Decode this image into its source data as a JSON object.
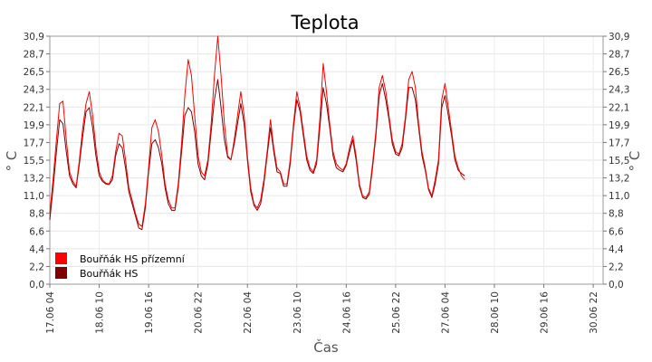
{
  "chart_data": {
    "type": "line",
    "title": "Teplota",
    "xlabel": "Čas",
    "ylabel": "° C",
    "ylim": [
      0,
      30.9
    ],
    "y_ticks": [
      "0,0",
      "2,2",
      "4,4",
      "6,6",
      "8,8",
      "11,0",
      "13,2",
      "15,5",
      "17,7",
      "19,9",
      "22,1",
      "24,3",
      "26,5",
      "28,7",
      "30,9"
    ],
    "x_ticks": [
      "17.06 04",
      "18.06 10",
      "19.06 16",
      "20.06 22",
      "22.06 04",
      "23.06 10",
      "24.06 16",
      "25.06 22",
      "27.06 04",
      "28.06 10",
      "29.06 16",
      "30.06 22"
    ],
    "x_tick_hours": [
      4,
      34,
      64,
      94,
      124,
      154,
      184,
      214,
      244,
      274,
      304,
      334
    ],
    "x_range_hours": [
      4,
      340
    ],
    "grid": true,
    "legend_position": "bottom-left",
    "series": [
      {
        "name": "Bouřňák HS přízemní",
        "color": "#ff0000",
        "points": [
          [
            4,
            8.8
          ],
          [
            6,
            13.0
          ],
          [
            8,
            18.0
          ],
          [
            10,
            22.5
          ],
          [
            12,
            22.8
          ],
          [
            14,
            18.0
          ],
          [
            16,
            14.0
          ],
          [
            18,
            12.8
          ],
          [
            20,
            12.2
          ],
          [
            22,
            15.5
          ],
          [
            24,
            19.5
          ],
          [
            26,
            22.5
          ],
          [
            28,
            24.0
          ],
          [
            30,
            21.0
          ],
          [
            32,
            17.0
          ],
          [
            34,
            14.0
          ],
          [
            36,
            13.0
          ],
          [
            38,
            12.6
          ],
          [
            40,
            12.5
          ],
          [
            42,
            13.5
          ],
          [
            44,
            16.5
          ],
          [
            46,
            18.8
          ],
          [
            48,
            18.5
          ],
          [
            50,
            15.5
          ],
          [
            52,
            12.0
          ],
          [
            54,
            10.5
          ],
          [
            56,
            8.8
          ],
          [
            58,
            7.5
          ],
          [
            60,
            7.2
          ],
          [
            62,
            10.0
          ],
          [
            64,
            14.5
          ],
          [
            66,
            19.5
          ],
          [
            68,
            20.5
          ],
          [
            70,
            19.0
          ],
          [
            72,
            16.0
          ],
          [
            74,
            12.5
          ],
          [
            76,
            10.5
          ],
          [
            78,
            9.5
          ],
          [
            80,
            9.5
          ],
          [
            82,
            12.5
          ],
          [
            84,
            17.5
          ],
          [
            86,
            23.5
          ],
          [
            88,
            28.0
          ],
          [
            90,
            26.0
          ],
          [
            92,
            21.0
          ],
          [
            94,
            16.0
          ],
          [
            96,
            14.0
          ],
          [
            98,
            13.5
          ],
          [
            100,
            15.5
          ],
          [
            102,
            20.0
          ],
          [
            104,
            26.0
          ],
          [
            106,
            30.9
          ],
          [
            108,
            26.0
          ],
          [
            110,
            20.0
          ],
          [
            112,
            16.0
          ],
          [
            114,
            15.5
          ],
          [
            116,
            18.0
          ],
          [
            118,
            21.0
          ],
          [
            120,
            24.0
          ],
          [
            122,
            21.0
          ],
          [
            124,
            16.0
          ],
          [
            126,
            12.0
          ],
          [
            128,
            10.0
          ],
          [
            130,
            9.5
          ],
          [
            132,
            10.5
          ],
          [
            134,
            13.0
          ],
          [
            136,
            16.5
          ],
          [
            138,
            20.5
          ],
          [
            140,
            17.0
          ],
          [
            142,
            14.5
          ],
          [
            144,
            14.0
          ],
          [
            146,
            12.5
          ],
          [
            148,
            12.5
          ],
          [
            150,
            15.5
          ],
          [
            152,
            20.0
          ],
          [
            154,
            24.0
          ],
          [
            156,
            22.0
          ],
          [
            158,
            19.0
          ],
          [
            160,
            16.0
          ],
          [
            162,
            14.5
          ],
          [
            164,
            14.0
          ],
          [
            166,
            15.5
          ],
          [
            168,
            20.5
          ],
          [
            170,
            27.5
          ],
          [
            172,
            24.0
          ],
          [
            174,
            20.0
          ],
          [
            176,
            16.5
          ],
          [
            178,
            15.0
          ],
          [
            180,
            14.5
          ],
          [
            182,
            14.2
          ],
          [
            184,
            15.0
          ],
          [
            186,
            17.0
          ],
          [
            188,
            18.5
          ],
          [
            190,
            16.0
          ],
          [
            192,
            12.5
          ],
          [
            194,
            11.0
          ],
          [
            196,
            10.8
          ],
          [
            198,
            11.5
          ],
          [
            200,
            15.0
          ],
          [
            202,
            19.0
          ],
          [
            204,
            24.5
          ],
          [
            206,
            26.0
          ],
          [
            208,
            24.0
          ],
          [
            210,
            21.0
          ],
          [
            212,
            18.0
          ],
          [
            214,
            16.5
          ],
          [
            216,
            16.2
          ],
          [
            218,
            17.5
          ],
          [
            220,
            21.0
          ],
          [
            222,
            25.5
          ],
          [
            224,
            26.5
          ],
          [
            226,
            24.5
          ],
          [
            228,
            20.0
          ],
          [
            230,
            16.5
          ],
          [
            232,
            14.5
          ],
          [
            234,
            12.0
          ],
          [
            236,
            11.0
          ],
          [
            238,
            13.0
          ],
          [
            240,
            15.5
          ],
          [
            242,
            23.0
          ],
          [
            244,
            25.0
          ],
          [
            246,
            22.0
          ],
          [
            248,
            19.0
          ],
          [
            250,
            16.0
          ],
          [
            252,
            14.5
          ],
          [
            254,
            13.5
          ],
          [
            256,
            13.0
          ]
        ]
      },
      {
        "name": "Bouřňák HS",
        "color": "#800000",
        "points": [
          [
            4,
            8.0
          ],
          [
            6,
            12.0
          ],
          [
            8,
            16.5
          ],
          [
            10,
            20.5
          ],
          [
            12,
            20.0
          ],
          [
            14,
            16.5
          ],
          [
            16,
            13.5
          ],
          [
            18,
            12.5
          ],
          [
            20,
            12.0
          ],
          [
            22,
            15.0
          ],
          [
            24,
            18.5
          ],
          [
            26,
            21.5
          ],
          [
            28,
            22.0
          ],
          [
            30,
            19.5
          ],
          [
            32,
            16.0
          ],
          [
            34,
            13.5
          ],
          [
            36,
            12.8
          ],
          [
            38,
            12.5
          ],
          [
            40,
            12.4
          ],
          [
            42,
            13.0
          ],
          [
            44,
            16.0
          ],
          [
            46,
            17.5
          ],
          [
            48,
            17.0
          ],
          [
            50,
            14.5
          ],
          [
            52,
            11.5
          ],
          [
            54,
            10.0
          ],
          [
            56,
            8.5
          ],
          [
            58,
            7.0
          ],
          [
            60,
            6.8
          ],
          [
            62,
            9.5
          ],
          [
            64,
            14.0
          ],
          [
            66,
            17.5
          ],
          [
            68,
            18.0
          ],
          [
            70,
            17.0
          ],
          [
            72,
            15.0
          ],
          [
            74,
            12.0
          ],
          [
            76,
            10.0
          ],
          [
            78,
            9.2
          ],
          [
            80,
            9.2
          ],
          [
            82,
            12.0
          ],
          [
            84,
            16.5
          ],
          [
            86,
            21.0
          ],
          [
            88,
            22.0
          ],
          [
            90,
            21.5
          ],
          [
            92,
            19.0
          ],
          [
            94,
            15.0
          ],
          [
            96,
            13.5
          ],
          [
            98,
            13.0
          ],
          [
            100,
            15.0
          ],
          [
            102,
            19.0
          ],
          [
            104,
            23.0
          ],
          [
            106,
            25.5
          ],
          [
            108,
            22.0
          ],
          [
            110,
            18.0
          ],
          [
            112,
            15.8
          ],
          [
            114,
            15.5
          ],
          [
            116,
            17.5
          ],
          [
            118,
            20.0
          ],
          [
            120,
            22.5
          ],
          [
            122,
            20.0
          ],
          [
            124,
            15.5
          ],
          [
            126,
            11.5
          ],
          [
            128,
            9.8
          ],
          [
            130,
            9.2
          ],
          [
            132,
            10.0
          ],
          [
            134,
            12.5
          ],
          [
            136,
            16.0
          ],
          [
            138,
            19.5
          ],
          [
            140,
            16.5
          ],
          [
            142,
            14.0
          ],
          [
            144,
            13.8
          ],
          [
            146,
            12.2
          ],
          [
            148,
            12.2
          ],
          [
            150,
            15.0
          ],
          [
            152,
            19.5
          ],
          [
            154,
            23.0
          ],
          [
            156,
            21.5
          ],
          [
            158,
            18.5
          ],
          [
            160,
            15.5
          ],
          [
            162,
            14.2
          ],
          [
            164,
            13.8
          ],
          [
            166,
            15.0
          ],
          [
            168,
            19.5
          ],
          [
            170,
            24.5
          ],
          [
            172,
            22.5
          ],
          [
            174,
            19.5
          ],
          [
            176,
            16.0
          ],
          [
            178,
            14.5
          ],
          [
            180,
            14.2
          ],
          [
            182,
            14.0
          ],
          [
            184,
            14.8
          ],
          [
            186,
            16.5
          ],
          [
            188,
            18.0
          ],
          [
            190,
            15.5
          ],
          [
            192,
            12.2
          ],
          [
            194,
            10.8
          ],
          [
            196,
            10.6
          ],
          [
            198,
            11.2
          ],
          [
            200,
            14.5
          ],
          [
            202,
            18.5
          ],
          [
            204,
            23.5
          ],
          [
            206,
            25.0
          ],
          [
            208,
            23.0
          ],
          [
            210,
            20.5
          ],
          [
            212,
            17.5
          ],
          [
            214,
            16.2
          ],
          [
            216,
            16.0
          ],
          [
            218,
            17.0
          ],
          [
            220,
            20.5
          ],
          [
            222,
            24.5
          ],
          [
            224,
            24.5
          ],
          [
            226,
            23.0
          ],
          [
            228,
            19.5
          ],
          [
            230,
            16.0
          ],
          [
            232,
            14.2
          ],
          [
            234,
            11.8
          ],
          [
            236,
            10.8
          ],
          [
            238,
            12.5
          ],
          [
            240,
            15.0
          ],
          [
            242,
            22.0
          ],
          [
            244,
            23.5
          ],
          [
            246,
            21.0
          ],
          [
            248,
            18.5
          ],
          [
            250,
            15.5
          ],
          [
            252,
            14.2
          ],
          [
            254,
            13.8
          ],
          [
            256,
            13.5
          ]
        ]
      }
    ]
  }
}
